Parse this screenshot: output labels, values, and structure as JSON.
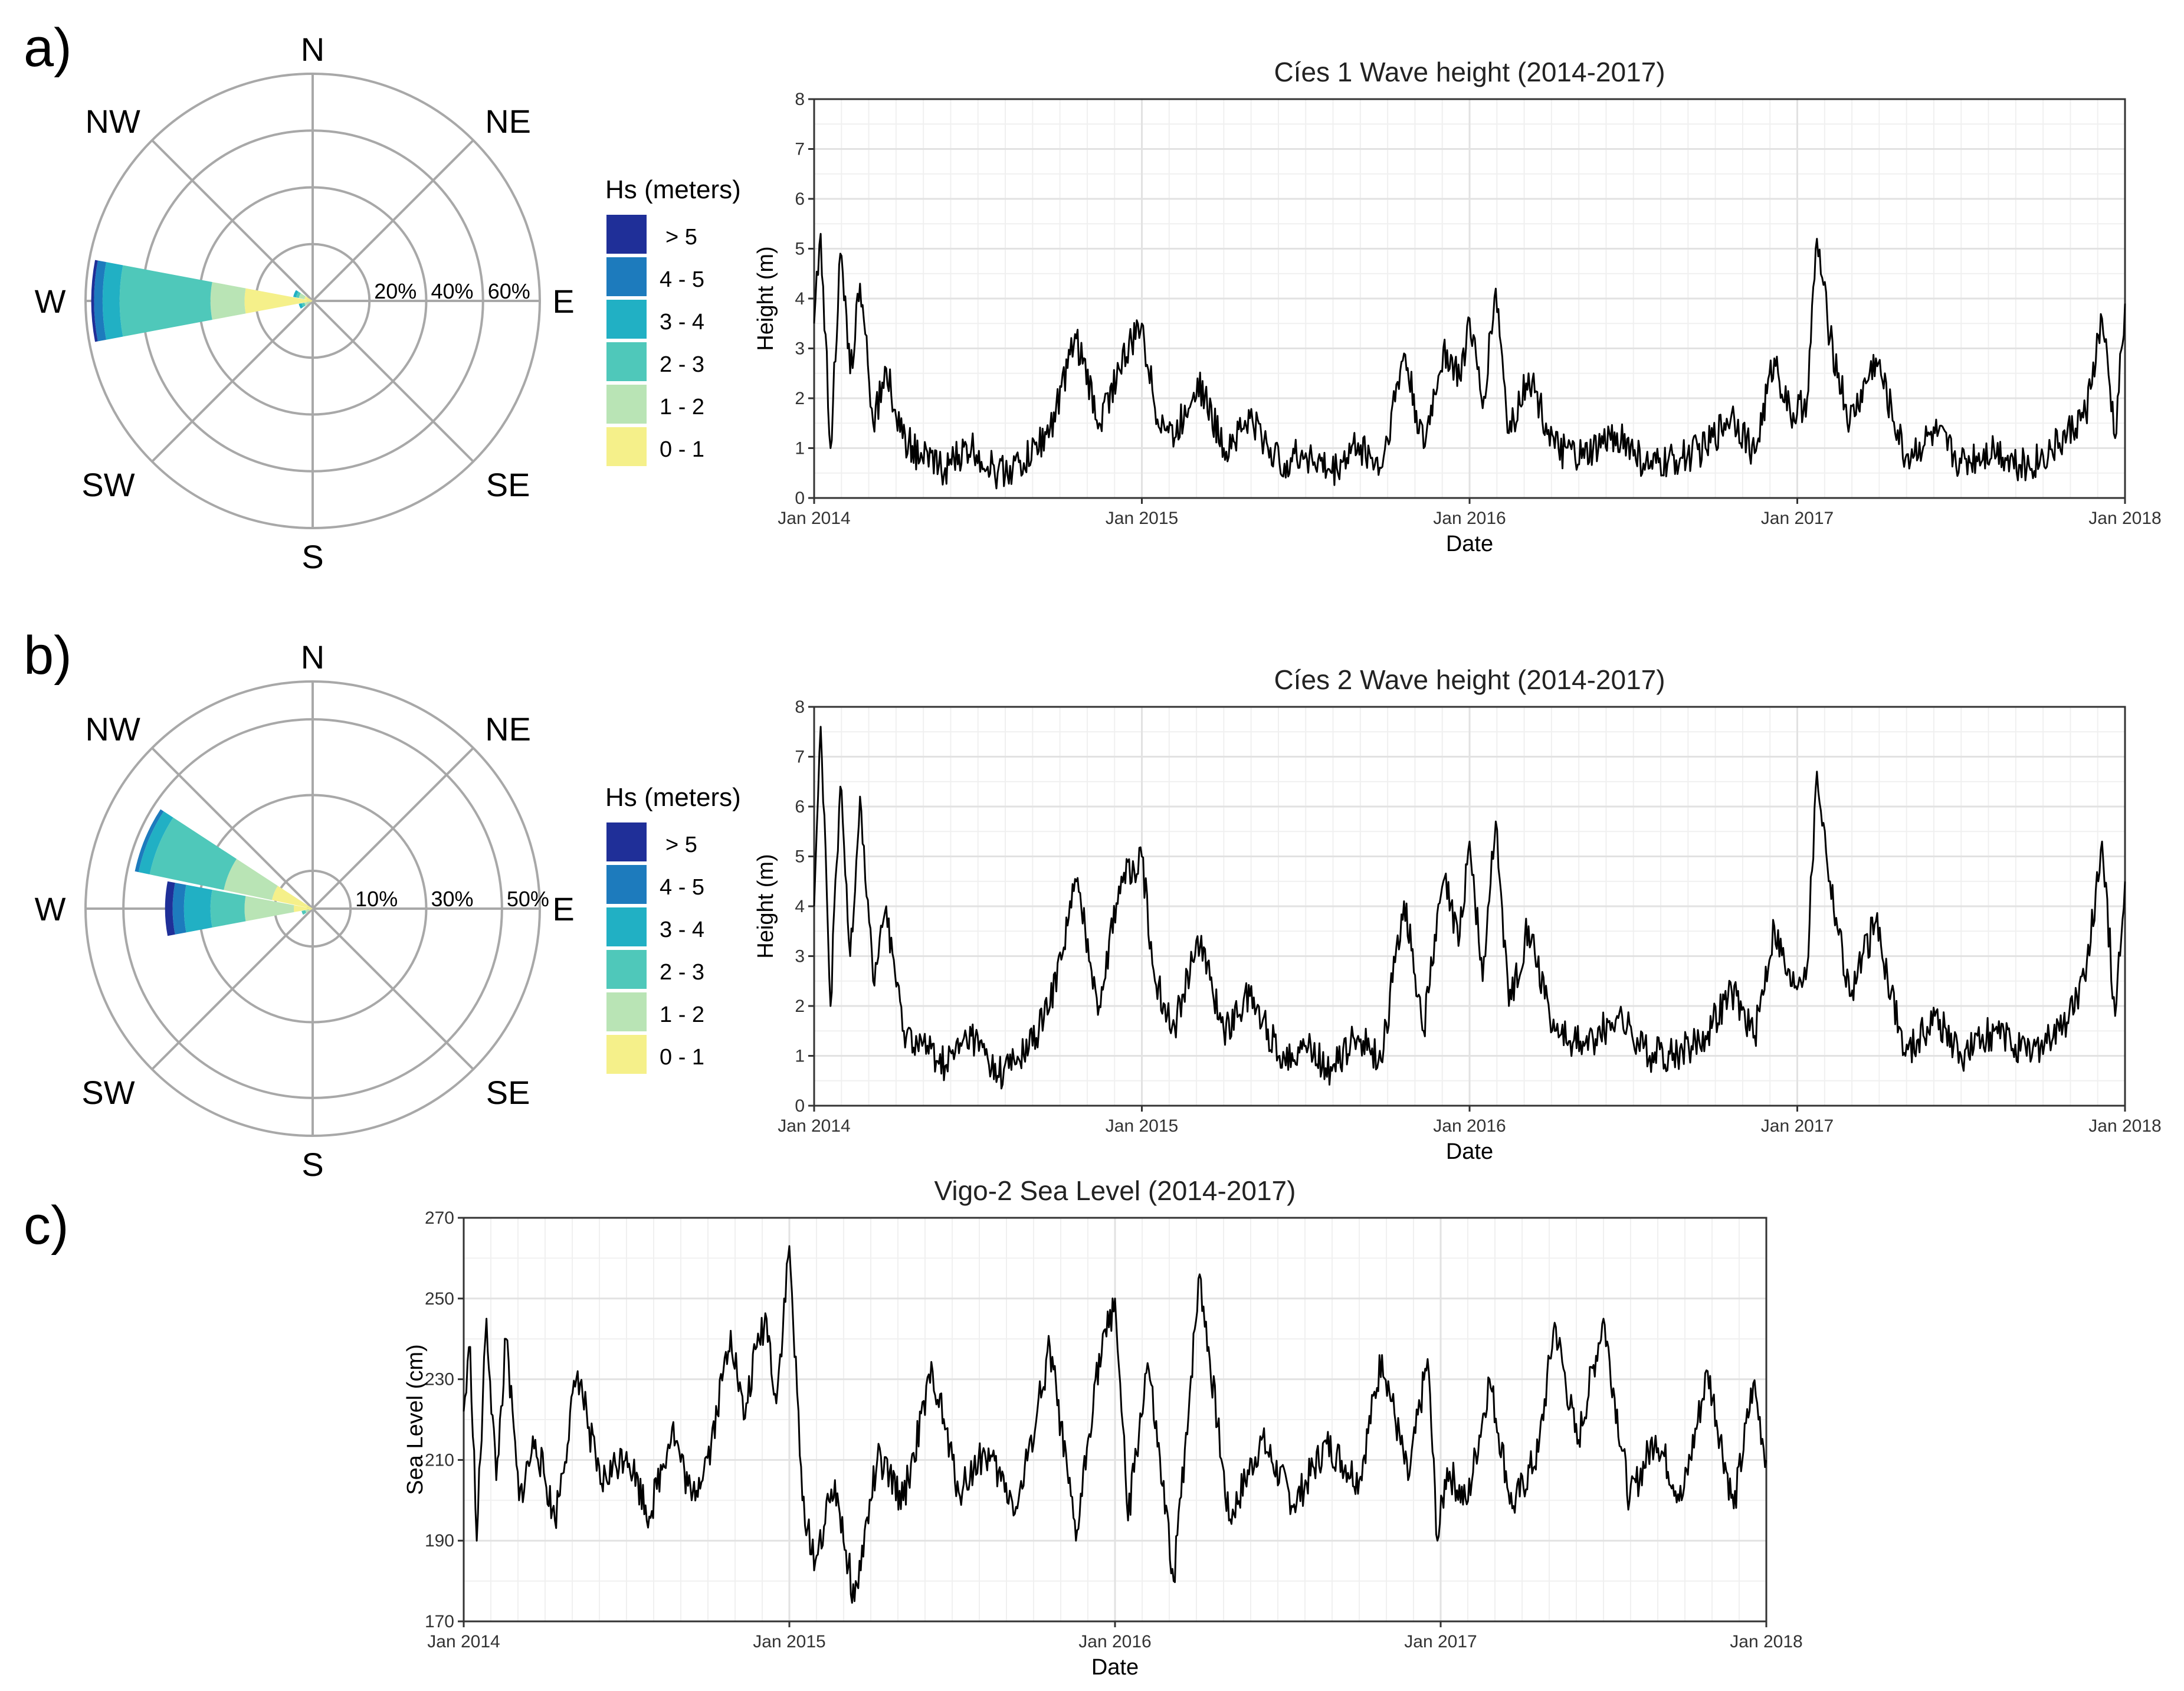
{
  "panels": [
    "a)",
    "b)",
    "c)"
  ],
  "legend": {
    "title": "Hs (meters)",
    "bins": [
      "> 5",
      "4 - 5",
      "3 - 4",
      "2 - 3",
      "1 - 2",
      "0 - 1"
    ],
    "colors": [
      "#1f2f98",
      "#1d7bbd",
      "#21b0c4",
      "#4fc8ba",
      "#b9e4b5",
      "#f5f08a"
    ]
  },
  "compass": [
    "N",
    "NE",
    "E",
    "SE",
    "S",
    "SW",
    "W",
    "NW"
  ],
  "chart_data": [
    {
      "type": "rose",
      "panel": "a)",
      "title": "",
      "ring_labels": [
        "20%",
        "40%",
        "60%"
      ],
      "ring_max_percent": 80,
      "sectors": [
        {
          "direction": "W",
          "center_deg": 270,
          "cumulative_percent": [
            24,
            36,
            68,
            74,
            77,
            78
          ]
        },
        {
          "direction": "WNW",
          "center_deg": 292.5,
          "cumulative_percent": [
            3,
            5,
            6,
            7,
            7,
            7
          ]
        },
        {
          "direction": "WSW",
          "center_deg": 247.5,
          "cumulative_percent": [
            1,
            3,
            4,
            5,
            5,
            5
          ]
        }
      ]
    },
    {
      "type": "rose",
      "panel": "b)",
      "title": "",
      "ring_labels": [
        "10%",
        "30%",
        "50%"
      ],
      "ring_max_percent": 60,
      "sectors": [
        {
          "direction": "WNW",
          "center_deg": 292.5,
          "cumulative_percent": [
            11,
            24,
            44,
            47,
            48,
            48
          ]
        },
        {
          "direction": "W",
          "center_deg": 270,
          "cumulative_percent": [
            5,
            18,
            27,
            34,
            37,
            39
          ]
        },
        {
          "direction": "WSW",
          "center_deg": 247.5,
          "cumulative_percent": [
            1,
            2,
            3,
            3,
            3,
            3
          ]
        }
      ]
    },
    {
      "type": "line",
      "title": "Cíes 1 Wave height (2014-2017)",
      "xlabel": "Date",
      "ylabel": "Height (m)",
      "xlim": [
        2014,
        2018
      ],
      "ylim": [
        0,
        8
      ],
      "xticks": [
        "Jan 2014",
        "Jan 2015",
        "Jan 2016",
        "Jan 2017",
        "Jan 2018"
      ],
      "yticks": [
        "0",
        "1",
        "2",
        "3",
        "4",
        "5",
        "6",
        "7",
        "8"
      ],
      "x": [
        2014.0,
        2014.02,
        2014.05,
        2014.08,
        2014.11,
        2014.14,
        2014.18,
        2014.22,
        2014.27,
        2014.33,
        2014.4,
        2014.48,
        2014.56,
        2014.64,
        2014.72,
        2014.8,
        2014.87,
        2014.93,
        2015.0,
        2015.04,
        2015.1,
        2015.17,
        2015.25,
        2015.33,
        2015.42,
        2015.5,
        2015.58,
        2015.66,
        2015.73,
        2015.8,
        2015.86,
        2015.92,
        2015.97,
        2016.0,
        2016.04,
        2016.08,
        2016.12,
        2016.18,
        2016.26,
        2016.35,
        2016.45,
        2016.55,
        2016.65,
        2016.72,
        2016.8,
        2016.87,
        2016.93,
        2016.98,
        2017.03,
        2017.06,
        2017.1,
        2017.16,
        2017.24,
        2017.33,
        2017.42,
        2017.5,
        2017.6,
        2017.7,
        2017.8,
        2017.88,
        2017.93,
        2017.97,
        2018.0
      ],
      "y": [
        3.5,
        5.3,
        1.0,
        4.9,
        2.5,
        4.3,
        1.5,
        2.6,
        1.2,
        0.8,
        0.6,
        1.0,
        0.5,
        0.7,
        1.4,
        3.2,
        1.5,
        2.6,
        3.5,
        1.8,
        1.2,
        2.4,
        1.0,
        1.6,
        0.7,
        0.9,
        0.5,
        1.1,
        0.6,
        2.9,
        1.0,
        3.0,
        2.4,
        3.6,
        1.8,
        4.2,
        1.3,
        2.5,
        1.0,
        0.8,
        1.3,
        0.6,
        0.8,
        1.0,
        1.7,
        0.9,
        2.8,
        1.6,
        2.0,
        5.2,
        3.2,
        1.5,
        2.8,
        0.8,
        1.3,
        0.7,
        1.0,
        0.6,
        1.1,
        1.7,
        3.6,
        1.2,
        3.9
      ]
    },
    {
      "type": "line",
      "title": "Cíes 2 Wave height (2014-2017)",
      "xlabel": "Date",
      "ylabel": "Height (m)",
      "xlim": [
        2014,
        2018
      ],
      "ylim": [
        0,
        8
      ],
      "xticks": [
        "Jan 2014",
        "Jan 2015",
        "Jan 2016",
        "Jan 2017",
        "Jan 2018"
      ],
      "yticks": [
        "0",
        "1",
        "2",
        "3",
        "4",
        "5",
        "6",
        "7",
        "8"
      ],
      "x": [
        2014.0,
        2014.02,
        2014.05,
        2014.08,
        2014.11,
        2014.14,
        2014.18,
        2014.22,
        2014.27,
        2014.33,
        2014.4,
        2014.48,
        2014.56,
        2014.64,
        2014.72,
        2014.8,
        2014.87,
        2014.93,
        2015.0,
        2015.04,
        2015.1,
        2015.17,
        2015.25,
        2015.33,
        2015.42,
        2015.5,
        2015.58,
        2015.66,
        2015.73,
        2015.8,
        2015.86,
        2015.92,
        2015.97,
        2016.0,
        2016.04,
        2016.08,
        2016.12,
        2016.18,
        2016.26,
        2016.35,
        2016.45,
        2016.55,
        2016.65,
        2016.72,
        2016.8,
        2016.87,
        2016.93,
        2016.98,
        2017.03,
        2017.06,
        2017.1,
        2017.16,
        2017.24,
        2017.33,
        2017.42,
        2017.5,
        2017.6,
        2017.7,
        2017.8,
        2017.88,
        2017.93,
        2017.97,
        2018.0
      ],
      "y": [
        4.0,
        7.6,
        2.0,
        6.4,
        3.0,
        6.2,
        2.5,
        4.0,
        1.5,
        1.2,
        0.8,
        1.4,
        0.6,
        1.0,
        2.0,
        4.5,
        2.0,
        4.4,
        5.0,
        2.5,
        1.6,
        3.4,
        1.5,
        2.2,
        1.0,
        1.2,
        0.7,
        1.4,
        0.9,
        4.1,
        1.5,
        4.5,
        3.4,
        5.3,
        2.5,
        5.7,
        2.0,
        3.6,
        1.5,
        1.2,
        1.8,
        1.0,
        1.1,
        1.4,
        2.3,
        1.4,
        3.6,
        2.4,
        2.8,
        6.7,
        4.5,
        2.2,
        3.7,
        1.0,
        1.8,
        1.0,
        1.5,
        1.0,
        1.5,
        2.5,
        5.3,
        1.8,
        4.5
      ]
    },
    {
      "type": "line",
      "title": "Vigo-2 Sea Level (2014-2017)",
      "xlabel": "Date",
      "ylabel": "Sea Level (cm)",
      "xlim": [
        2014,
        2018
      ],
      "ylim": [
        170,
        270
      ],
      "xticks": [
        "Jan 2014",
        "Jan 2015",
        "Jan 2016",
        "Jan 2017",
        "Jan 2018"
      ],
      "yticks": [
        "170",
        "190",
        "210",
        "230",
        "250",
        "270"
      ],
      "x": [
        2014.0,
        2014.02,
        2014.04,
        2014.07,
        2014.1,
        2014.13,
        2014.17,
        2014.22,
        2014.28,
        2014.35,
        2014.42,
        2014.5,
        2014.57,
        2014.64,
        2014.7,
        2014.76,
        2014.82,
        2014.86,
        2014.9,
        2014.93,
        2014.96,
        2015.0,
        2015.04,
        2015.08,
        2015.14,
        2015.2,
        2015.27,
        2015.35,
        2015.44,
        2015.52,
        2015.6,
        2015.7,
        2015.8,
        2015.88,
        2015.94,
        2016.0,
        2016.04,
        2016.1,
        2016.18,
        2016.26,
        2016.35,
        2016.45,
        2016.55,
        2016.65,
        2016.75,
        2016.82,
        2016.9,
        2016.96,
        2016.99,
        2017.02,
        2017.08,
        2017.15,
        2017.22,
        2017.3,
        2017.35,
        2017.42,
        2017.5,
        2017.58,
        2017.66,
        2017.74,
        2017.82,
        2017.9,
        2017.96,
        2018.0
      ],
      "y": [
        222,
        238,
        190,
        245,
        205,
        240,
        200,
        215,
        195,
        232,
        204,
        212,
        196,
        218,
        200,
        214,
        242,
        220,
        238,
        245,
        224,
        263,
        200,
        185,
        205,
        175,
        210,
        200,
        232,
        202,
        212,
        198,
        238,
        190,
        230,
        250,
        195,
        234,
        180,
        256,
        195,
        215,
        199,
        214,
        205,
        236,
        205,
        235,
        190,
        208,
        199,
        230,
        198,
        212,
        244,
        214,
        245,
        200,
        216,
        200,
        232,
        198,
        229,
        210
      ]
    }
  ]
}
